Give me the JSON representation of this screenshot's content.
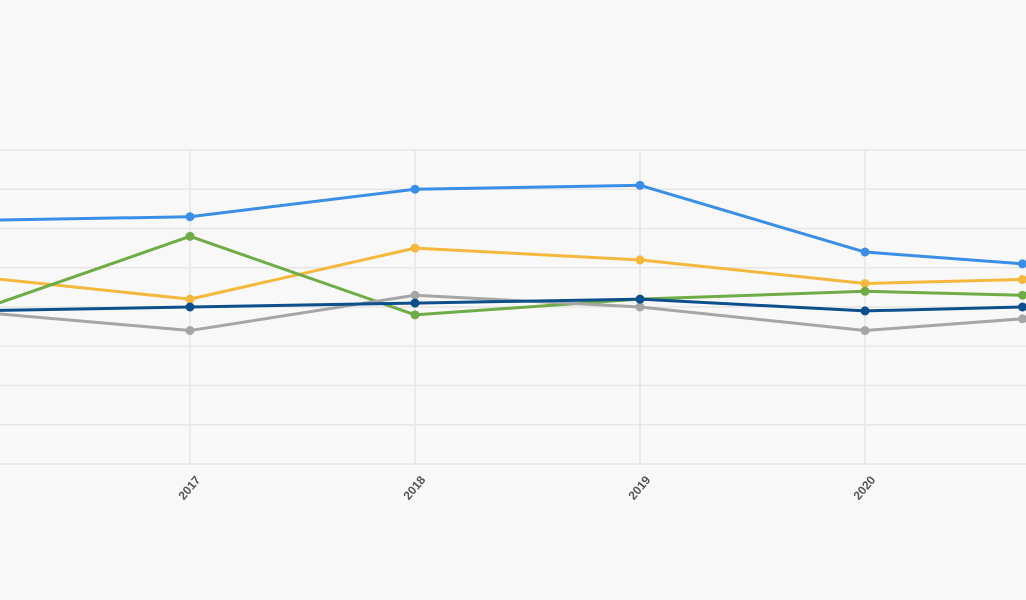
{
  "chart_data": {
    "type": "line",
    "x": [
      "2017",
      "2018",
      "2019",
      "2020"
    ],
    "x_domain": [
      2016,
      2020.7
    ],
    "ylim": [
      0,
      8
    ],
    "grid": true,
    "legend": "none",
    "series": [
      {
        "color": "#3a8ee6",
        "points": [
          [
            2016,
            6.2
          ],
          [
            2017,
            6.3
          ],
          [
            2018,
            7.0
          ],
          [
            2019,
            7.1
          ],
          [
            2020,
            5.4
          ],
          [
            2020.7,
            5.1
          ]
        ]
      },
      {
        "color": "#f5b83d",
        "points": [
          [
            2016,
            4.8
          ],
          [
            2017,
            4.2
          ],
          [
            2018,
            5.5
          ],
          [
            2019,
            5.2
          ],
          [
            2020,
            4.6
          ],
          [
            2020.7,
            4.7
          ]
        ]
      },
      {
        "color": "#6fac46",
        "points": [
          [
            2016,
            3.8
          ],
          [
            2017,
            5.8
          ],
          [
            2018,
            3.8
          ],
          [
            2019,
            4.2
          ],
          [
            2020,
            4.4
          ],
          [
            2020.7,
            4.3
          ]
        ]
      },
      {
        "color": "#a6a6a6",
        "points": [
          [
            2016,
            3.9
          ],
          [
            2017,
            3.4
          ],
          [
            2018,
            4.3
          ],
          [
            2019,
            4.0
          ],
          [
            2020,
            3.4
          ],
          [
            2020.7,
            3.7
          ]
        ]
      },
      {
        "color": "#0d4f8c",
        "points": [
          [
            2016,
            3.9
          ],
          [
            2017,
            4.0
          ],
          [
            2018,
            4.1
          ],
          [
            2019,
            4.2
          ],
          [
            2020,
            3.9
          ],
          [
            2020.7,
            4.0
          ]
        ]
      }
    ]
  }
}
